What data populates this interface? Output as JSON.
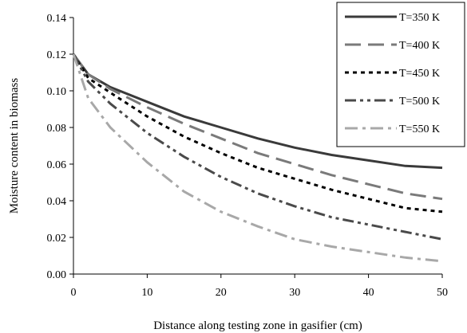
{
  "chart_data": {
    "type": "line",
    "title": "",
    "xlabel": "Distance along testing zone in gasifier (cm)",
    "ylabel": "Moisture content in biomass",
    "xlim": [
      0,
      50
    ],
    "ylim": [
      0,
      0.14
    ],
    "x_ticks": [
      "0",
      "10",
      "20",
      "30",
      "40",
      "50"
    ],
    "y_ticks": [
      "0.00",
      "0.02",
      "0.04",
      "0.06",
      "0.08",
      "0.10",
      "0.12",
      "0.14"
    ],
    "grid": false,
    "legend_position": "top-right",
    "series": [
      {
        "name": "T=350 K",
        "color": "#3a3a3a",
        "dash": "solid",
        "x": [
          0,
          2,
          5,
          10,
          15,
          20,
          25,
          30,
          35,
          40,
          45,
          50
        ],
        "y": [
          0.12,
          0.109,
          0.102,
          0.094,
          0.086,
          0.08,
          0.074,
          0.069,
          0.065,
          0.062,
          0.059,
          0.058
        ]
      },
      {
        "name": "T=400 K",
        "color": "#7a7a7a",
        "dash": "long-dash",
        "x": [
          0,
          2,
          5,
          10,
          15,
          20,
          25,
          30,
          35,
          40,
          45,
          50
        ],
        "y": [
          0.12,
          0.109,
          0.101,
          0.091,
          0.082,
          0.074,
          0.066,
          0.06,
          0.054,
          0.049,
          0.044,
          0.041
        ]
      },
      {
        "name": "T=450 K",
        "color": "#000000",
        "dash": "dotted",
        "x": [
          0,
          2,
          5,
          10,
          15,
          20,
          25,
          30,
          35,
          40,
          45,
          50
        ],
        "y": [
          0.12,
          0.107,
          0.099,
          0.086,
          0.075,
          0.066,
          0.058,
          0.052,
          0.046,
          0.041,
          0.036,
          0.034
        ]
      },
      {
        "name": "T=500 K",
        "color": "#4a4a4a",
        "dash": "dash-dot-dot",
        "x": [
          0,
          2,
          5,
          10,
          15,
          20,
          25,
          30,
          35,
          40,
          45,
          50
        ],
        "y": [
          0.12,
          0.105,
          0.093,
          0.077,
          0.064,
          0.053,
          0.044,
          0.037,
          0.031,
          0.027,
          0.023,
          0.019
        ]
      },
      {
        "name": "T=550 K",
        "color": "#a8a8a8",
        "dash": "dash-dot",
        "x": [
          0,
          2,
          5,
          10,
          15,
          20,
          25,
          30,
          35,
          40,
          45,
          50
        ],
        "y": [
          0.12,
          0.096,
          0.08,
          0.061,
          0.045,
          0.034,
          0.026,
          0.019,
          0.015,
          0.012,
          0.009,
          0.007
        ]
      }
    ]
  }
}
